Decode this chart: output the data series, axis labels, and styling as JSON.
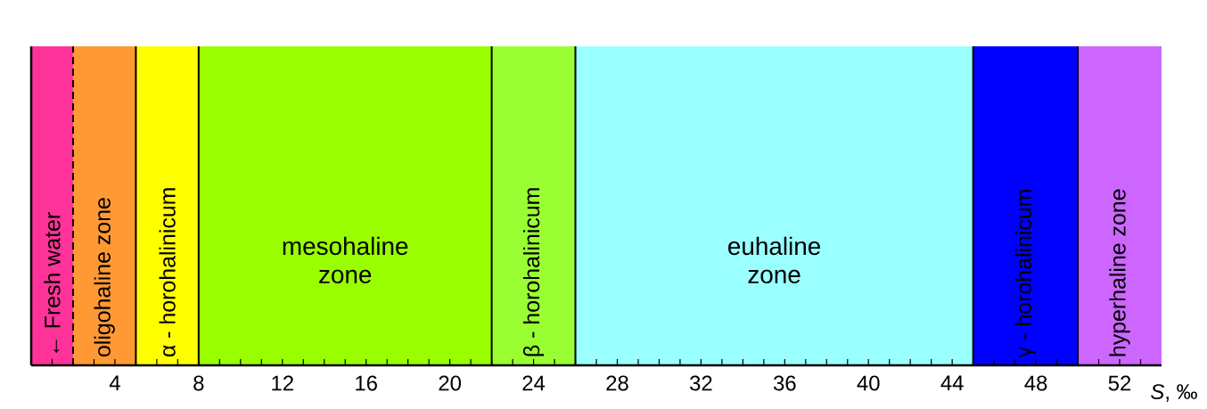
{
  "chart_data": {
    "type": "bar",
    "orientation": "horizontal",
    "stacked": true,
    "xlabel": "*S*, ‰",
    "xlim": [
      0,
      54
    ],
    "xticks": [
      {
        "value": 1,
        "label": null
      },
      {
        "value": 2,
        "label": null
      },
      {
        "value": 3,
        "label": null
      },
      4,
      {
        "value": 5,
        "label": null
      },
      {
        "value": 6,
        "label": null
      },
      {
        "value": 7,
        "label": null
      },
      8,
      {
        "value": 9,
        "label": null
      },
      {
        "value": 10,
        "label": null
      },
      {
        "value": 11,
        "label": null
      },
      12,
      {
        "value": 13,
        "label": null
      },
      {
        "value": 14,
        "label": null
      },
      {
        "value": 15,
        "label": null
      },
      16,
      {
        "value": 17,
        "label": null
      },
      {
        "value": 18,
        "label": null
      },
      {
        "value": 19,
        "label": null
      },
      20,
      {
        "value": 21,
        "label": null
      },
      {
        "value": 22,
        "label": null
      },
      {
        "value": 23,
        "label": null
      },
      24,
      {
        "value": 25,
        "label": null
      },
      {
        "value": 26,
        "label": null
      },
      {
        "value": 27,
        "label": null
      },
      28,
      {
        "value": 29,
        "label": null
      },
      {
        "value": 30,
        "label": null
      },
      {
        "value": 31,
        "label": null
      },
      32,
      {
        "value": 33,
        "label": null
      },
      {
        "value": 34,
        "label": null
      },
      {
        "value": 35,
        "label": null
      },
      36,
      {
        "value": 37,
        "label": null
      },
      {
        "value": 38,
        "label": null
      },
      {
        "value": 39,
        "label": null
      },
      40,
      {
        "value": 41,
        "label": null
      },
      {
        "value": 42,
        "label": null
      },
      {
        "value": 43,
        "label": null
      },
      44,
      {
        "value": 45,
        "label": null
      },
      {
        "value": 46,
        "label": null
      },
      {
        "value": 47,
        "label": null
      },
      48,
      {
        "value": 49,
        "label": null
      },
      {
        "value": 50,
        "label": null
      },
      {
        "value": 51,
        "label": null
      },
      52,
      {
        "value": 53,
        "label": null
      }
    ],
    "categories": [
      null
    ],
    "series": [
      {
        "name": "← Fresh water",
        "color": "#ff3399",
        "values": [
          2
        ]
      },
      {
        "name": "oligohaline zone",
        "color": "#ff9933",
        "values": [
          3
        ]
      },
      {
        "name": "α - horohalinicum",
        "color": "#ffff00",
        "values": [
          3
        ]
      },
      {
        "name": "mesohaline zone",
        "color": "#99ff00",
        "values": [
          14
        ]
      },
      {
        "name": "β - horohalinicum",
        "color": "#99ff33",
        "values": [
          4
        ]
      },
      {
        "name": "euhaline zone",
        "color": "#99ffff",
        "values": [
          19
        ]
      },
      {
        "name": "γ - horohalinicum",
        "color": "#0000ff",
        "values": [
          5
        ]
      },
      {
        "name": "hyperhaline zone",
        "color": "#cc66ff",
        "values": [
          4
        ]
      }
    ],
    "ref_lines": [
      {
        "axis": "x",
        "value": 2,
        "line_style": "dashed"
      },
      {
        "axis": "x",
        "value": 5,
        "line_style": "solid"
      },
      {
        "axis": "x",
        "value": 8,
        "line_style": "solid"
      },
      {
        "axis": "x",
        "value": 22,
        "line_style": "solid"
      },
      {
        "axis": "x",
        "value": 26,
        "line_style": "solid"
      },
      {
        "axis": "x",
        "value": 45,
        "line_style": "solid"
      },
      {
        "axis": "x",
        "value": 50,
        "line_style": "solid"
      }
    ]
  }
}
